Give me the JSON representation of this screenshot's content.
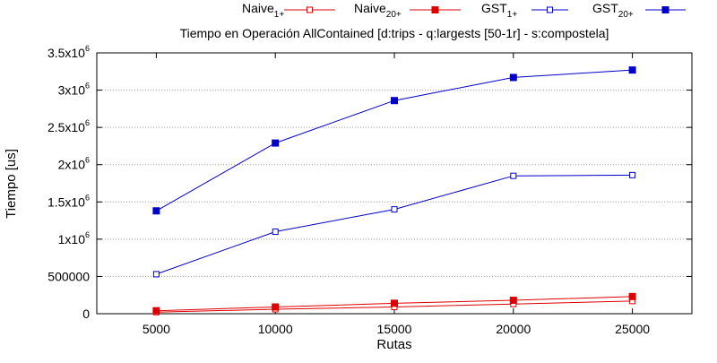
{
  "chart_data": {
    "type": "line",
    "title": "Tiempo en Operación AllContained [d:trips - q:largests [50-1r] - s:compostela]",
    "xlabel": "Rutas",
    "ylabel": "Tiempo [us]",
    "x": [
      5000,
      10000,
      15000,
      20000,
      25000
    ],
    "xlim": [
      2500,
      27500
    ],
    "ylim": [
      0,
      3500000
    ],
    "x_ticks": [
      "5000",
      "10000",
      "15000",
      "20000",
      "25000"
    ],
    "y_ticks": [
      {
        "value": 0,
        "mantissa": "0",
        "exp": ""
      },
      {
        "value": 500000,
        "mantissa": "500000",
        "exp": ""
      },
      {
        "value": 1000000,
        "mantissa": "1x10",
        "exp": "6"
      },
      {
        "value": 1500000,
        "mantissa": "1.5x10",
        "exp": "6"
      },
      {
        "value": 2000000,
        "mantissa": "2x10",
        "exp": "6"
      },
      {
        "value": 2500000,
        "mantissa": "2.5x10",
        "exp": "6"
      },
      {
        "value": 3000000,
        "mantissa": "3x10",
        "exp": "6"
      },
      {
        "value": 3500000,
        "mantissa": "3.5x10",
        "exp": "6"
      }
    ],
    "grid": "horizontal dotted",
    "legend_position": "top",
    "series": [
      {
        "name": "Naive",
        "sub": "1+",
        "color": "#dd0000",
        "marker": "square-open",
        "values": [
          20000,
          60000,
          90000,
          130000,
          170000
        ]
      },
      {
        "name": "Naive",
        "sub": "20+",
        "color": "#dd0000",
        "marker": "square-filled",
        "values": [
          40000,
          90000,
          140000,
          180000,
          230000
        ]
      },
      {
        "name": "GST",
        "sub": "1+",
        "color": "#0000cc",
        "marker": "square-open",
        "values": [
          530000,
          1100000,
          1400000,
          1850000,
          1860000
        ]
      },
      {
        "name": "GST",
        "sub": "20+",
        "color": "#0000cc",
        "marker": "square-filled",
        "values": [
          1380000,
          2290000,
          2860000,
          3170000,
          3270000
        ]
      }
    ]
  }
}
